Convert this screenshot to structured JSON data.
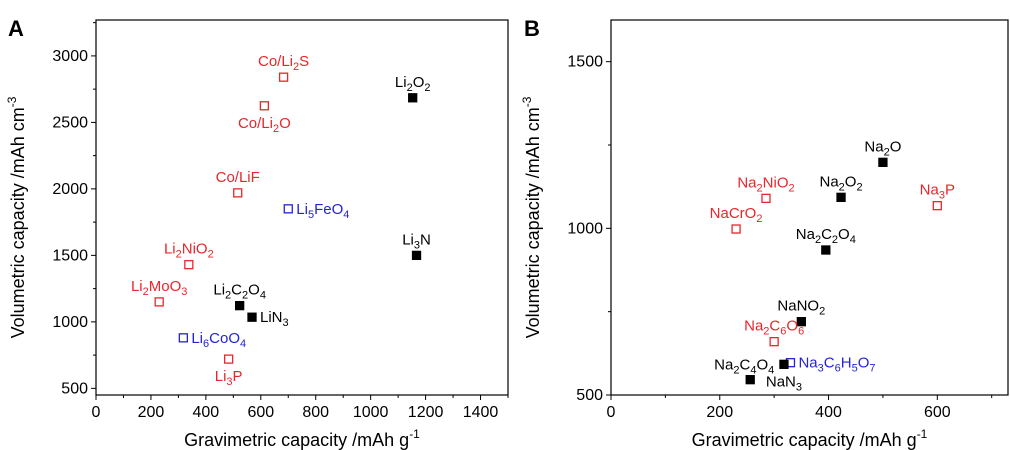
{
  "figure": {
    "colors": {
      "black": "#000000",
      "red": "#e8262b",
      "blue": "#2323d8"
    }
  },
  "chart_data": [
    {
      "panel": "A",
      "type": "scatter",
      "xlabel": "Gravimetric capacity /mAh g",
      "xlabel_sup": "-1",
      "ylabel": "Volumetric capacity /mAh cm",
      "ylabel_sup": "-3",
      "xlim": [
        0,
        1500
      ],
      "ylim": [
        450,
        3270
      ],
      "xticks": [
        "0",
        "200",
        "400",
        "600",
        "800",
        "1000",
        "1200",
        "1400"
      ],
      "yticks": [
        "500",
        "1000",
        "1500",
        "2000",
        "2500",
        "3000"
      ],
      "grid": false,
      "legend": "none",
      "points": [
        {
          "label": [
            [
              "Co/Li"
            ],
            [
              "2",
              "sub"
            ],
            [
              "S"
            ]
          ],
          "x": 683,
          "y": 2840,
          "color": "red",
          "marker": "open",
          "lpos": "above"
        },
        {
          "label": [
            [
              "Li"
            ],
            [
              "2",
              "sub"
            ],
            [
              "O"
            ],
            [
              "2",
              "sub"
            ]
          ],
          "x": 1153,
          "y": 2685,
          "color": "black",
          "marker": "filled",
          "lpos": "above"
        },
        {
          "label": [
            [
              "Co/Li"
            ],
            [
              "2",
              "sub"
            ],
            [
              "O"
            ]
          ],
          "x": 613,
          "y": 2625,
          "color": "red",
          "marker": "open",
          "lpos": "below"
        },
        {
          "label": [
            [
              "Co/LiF"
            ]
          ],
          "x": 516,
          "y": 1970,
          "color": "red",
          "marker": "open",
          "lpos": "above"
        },
        {
          "label": [
            [
              "Li"
            ],
            [
              "5",
              "sub"
            ],
            [
              "FeO"
            ],
            [
              "4",
              "sub"
            ]
          ],
          "x": 700,
          "y": 1850,
          "color": "blue",
          "marker": "open",
          "lpos": "right"
        },
        {
          "label": [
            [
              "Li"
            ],
            [
              "3",
              "sub"
            ],
            [
              "N"
            ]
          ],
          "x": 1167,
          "y": 1500,
          "color": "black",
          "marker": "filled",
          "lpos": "above"
        },
        {
          "label": [
            [
              "Li"
            ],
            [
              "2",
              "sub"
            ],
            [
              "NiO"
            ],
            [
              "2",
              "sub"
            ]
          ],
          "x": 338,
          "y": 1430,
          "color": "red",
          "marker": "open",
          "lpos": "above"
        },
        {
          "label": [
            [
              "Li"
            ],
            [
              "2",
              "sub"
            ],
            [
              "MoO"
            ],
            [
              "3",
              "sub"
            ]
          ],
          "x": 230,
          "y": 1150,
          "color": "red",
          "marker": "open",
          "lpos": "above"
        },
        {
          "label": [
            [
              "Li"
            ],
            [
              "2",
              "sub"
            ],
            [
              "C"
            ],
            [
              "2",
              "sub"
            ],
            [
              "O"
            ],
            [
              "4",
              "sub"
            ]
          ],
          "x": 523,
          "y": 1122,
          "color": "black",
          "marker": "filled",
          "lpos": "above"
        },
        {
          "label": [
            [
              "LiN"
            ],
            [
              "3",
              "sub"
            ]
          ],
          "x": 568,
          "y": 1035,
          "color": "black",
          "marker": "filled",
          "lpos": "right"
        },
        {
          "label": [
            [
              "Li"
            ],
            [
              "6",
              "sub"
            ],
            [
              "CoO"
            ],
            [
              "4",
              "sub"
            ]
          ],
          "x": 318,
          "y": 880,
          "color": "blue",
          "marker": "open",
          "lpos": "right"
        },
        {
          "label": [
            [
              "Li"
            ],
            [
              "3",
              "sub"
            ],
            [
              "P"
            ]
          ],
          "x": 483,
          "y": 720,
          "color": "red",
          "marker": "open",
          "lpos": "below"
        }
      ]
    },
    {
      "panel": "B",
      "type": "scatter",
      "xlabel": "Gravimetric capacity /mAh g",
      "xlabel_sup": "-1",
      "ylabel": "Volumetric capacity /mAh cm",
      "ylabel_sup": "-3",
      "xlim": [
        0,
        730
      ],
      "ylim": [
        500,
        1625
      ],
      "xticks": [
        "0",
        "200",
        "400",
        "600"
      ],
      "yticks": [
        "500",
        "1000",
        "1500"
      ],
      "grid": false,
      "legend": "none",
      "points": [
        {
          "label": [
            [
              "Na"
            ],
            [
              "2",
              "sub"
            ],
            [
              "O"
            ]
          ],
          "x": 500,
          "y": 1198,
          "color": "black",
          "marker": "filled",
          "lpos": "above"
        },
        {
          "label": [
            [
              "Na"
            ],
            [
              "3",
              "sub"
            ],
            [
              "P"
            ]
          ],
          "x": 600,
          "y": 1068,
          "color": "red",
          "marker": "open",
          "lpos": "above"
        },
        {
          "label": [
            [
              "Na"
            ],
            [
              "2",
              "sub"
            ],
            [
              "NiO"
            ],
            [
              "2",
              "sub"
            ]
          ],
          "x": 285,
          "y": 1090,
          "color": "red",
          "marker": "open",
          "lpos": "above"
        },
        {
          "label": [
            [
              "Na"
            ],
            [
              "2",
              "sub"
            ],
            [
              "O"
            ],
            [
              "2",
              "sub"
            ]
          ],
          "x": 423,
          "y": 1093,
          "color": "black",
          "marker": "filled",
          "lpos": "above"
        },
        {
          "label": [
            [
              "NaCrO"
            ],
            [
              "2",
              "sub"
            ]
          ],
          "x": 230,
          "y": 998,
          "color": "red",
          "marker": "open",
          "lpos": "above"
        },
        {
          "label": [
            [
              "Na"
            ],
            [
              "2",
              "sub"
            ],
            [
              "C"
            ],
            [
              "2",
              "sub"
            ],
            [
              "O"
            ],
            [
              "4",
              "sub"
            ]
          ],
          "x": 395,
          "y": 935,
          "color": "black",
          "marker": "filled",
          "lpos": "above"
        },
        {
          "label": [
            [
              "NaNO"
            ],
            [
              "2",
              "sub"
            ]
          ],
          "x": 350,
          "y": 720,
          "color": "black",
          "marker": "filled",
          "lpos": "above"
        },
        {
          "label": [
            [
              "Na"
            ],
            [
              "2",
              "sub"
            ],
            [
              "C"
            ],
            [
              "6",
              "sub"
            ],
            [
              "O"
            ],
            [
              "6",
              "sub"
            ]
          ],
          "x": 300,
          "y": 660,
          "color": "red",
          "marker": "open",
          "lpos": "above"
        },
        {
          "label": [
            [
              "Na"
            ],
            [
              "3",
              "sub"
            ],
            [
              "C"
            ],
            [
              "6",
              "sub"
            ],
            [
              "H"
            ],
            [
              "5",
              "sub"
            ],
            [
              "O"
            ],
            [
              "7",
              "sub"
            ]
          ],
          "x": 330,
          "y": 597,
          "color": "blue",
          "marker": "open",
          "lpos": "right"
        },
        {
          "label": [
            [
              "Na"
            ],
            [
              "2",
              "sub"
            ],
            [
              "C"
            ],
            [
              "4",
              "sub"
            ],
            [
              "O"
            ],
            [
              "4",
              "sub"
            ]
          ],
          "x": 256,
          "y": 546,
          "color": "black",
          "marker": "filled",
          "lpos": "aboveleft"
        },
        {
          "label": [
            [
              "NaN"
            ],
            [
              "3",
              "sub"
            ]
          ],
          "x": 318,
          "y": 592,
          "color": "black",
          "marker": "filled",
          "lpos": "below"
        }
      ]
    }
  ]
}
